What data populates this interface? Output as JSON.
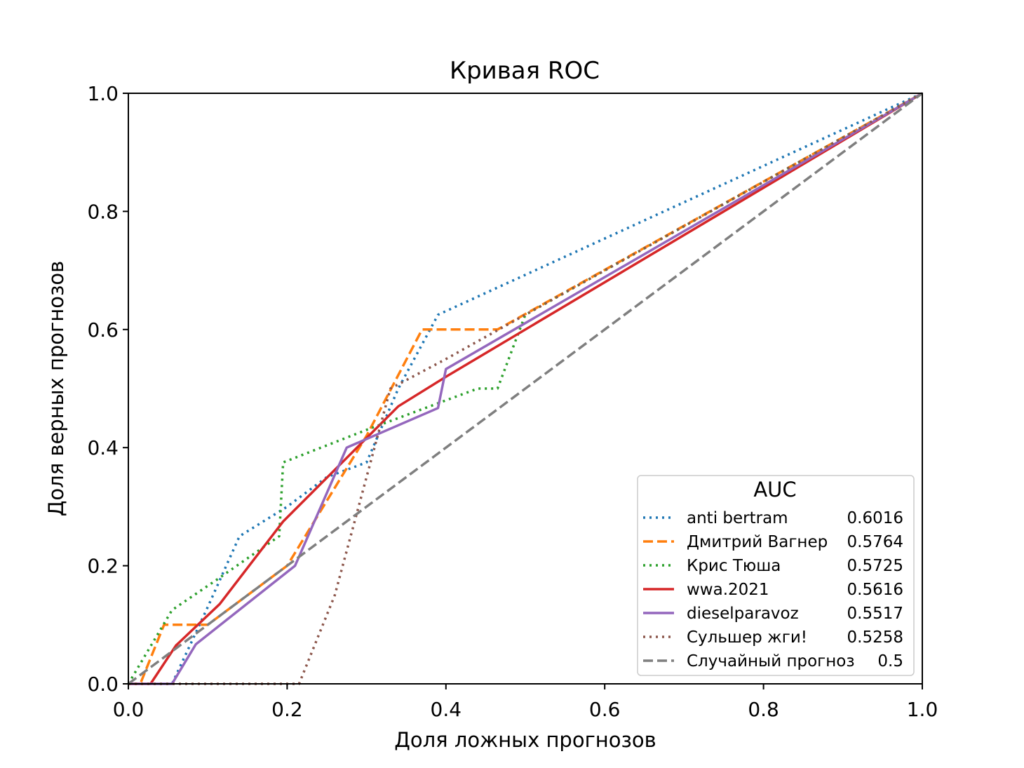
{
  "chart_data": {
    "type": "line",
    "title": "Кривая ROC",
    "xlabel": "Доля ложных прогнозов",
    "ylabel": "Доля верных прогнозов",
    "xlim": [
      0.0,
      1.0
    ],
    "ylim": [
      0.0,
      1.0
    ],
    "xticks": [
      "0.0",
      "0.2",
      "0.4",
      "0.6",
      "0.8",
      "1.0"
    ],
    "yticks": [
      "0.0",
      "0.2",
      "0.4",
      "0.6",
      "0.8",
      "1.0"
    ],
    "grid": false,
    "legend": {
      "title": "AUC",
      "placement": "lower-right"
    },
    "series": [
      {
        "name": "anti bertram",
        "auc": "0.6016",
        "color": "#1f77b4",
        "style": "dotted",
        "points": [
          [
            0.0,
            0.0
          ],
          [
            0.055,
            0.0
          ],
          [
            0.1,
            0.13
          ],
          [
            0.14,
            0.25
          ],
          [
            0.2,
            0.3
          ],
          [
            0.25,
            0.35
          ],
          [
            0.3,
            0.375
          ],
          [
            0.34,
            0.5
          ],
          [
            0.39,
            0.625
          ],
          [
            1.0,
            1.0
          ]
        ]
      },
      {
        "name": "Дмитрий Вагнер",
        "auc": "0.5764",
        "color": "#ff7f0e",
        "style": "dashed",
        "points": [
          [
            0.0,
            0.0
          ],
          [
            0.015,
            0.0
          ],
          [
            0.045,
            0.1
          ],
          [
            0.1,
            0.1
          ],
          [
            0.2,
            0.2
          ],
          [
            0.3,
            0.42
          ],
          [
            0.37,
            0.6
          ],
          [
            0.465,
            0.6
          ],
          [
            1.0,
            1.0
          ]
        ]
      },
      {
        "name": "Крис Тюша",
        "auc": "0.5725",
        "color": "#2ca02c",
        "style": "dotted",
        "points": [
          [
            0.0,
            0.0
          ],
          [
            0.055,
            0.125
          ],
          [
            0.11,
            0.175
          ],
          [
            0.19,
            0.25
          ],
          [
            0.195,
            0.375
          ],
          [
            0.3,
            0.43
          ],
          [
            0.4,
            0.48
          ],
          [
            0.44,
            0.5
          ],
          [
            0.465,
            0.5
          ],
          [
            0.5,
            0.625
          ],
          [
            1.0,
            1.0
          ]
        ]
      },
      {
        "name": "wwa.2021",
        "auc": "0.5616",
        "color": "#d62728",
        "style": "solid",
        "points": [
          [
            0.0,
            0.0
          ],
          [
            0.028,
            0.0
          ],
          [
            0.06,
            0.065
          ],
          [
            0.115,
            0.135
          ],
          [
            0.195,
            0.275
          ],
          [
            0.34,
            0.47
          ],
          [
            0.4,
            0.52
          ],
          [
            1.0,
            1.0
          ]
        ]
      },
      {
        "name": "dieselparavoz",
        "auc": "0.5517",
        "color": "#9467bd",
        "style": "solid",
        "points": [
          [
            0.0,
            0.0
          ],
          [
            0.055,
            0.0
          ],
          [
            0.085,
            0.067
          ],
          [
            0.21,
            0.2
          ],
          [
            0.275,
            0.4
          ],
          [
            0.39,
            0.467
          ],
          [
            0.4,
            0.533
          ],
          [
            1.0,
            1.0
          ]
        ]
      },
      {
        "name": "Сульшер жги!",
        "auc": "0.5258",
        "color": "#8c564b",
        "style": "dotted",
        "points": [
          [
            0.0,
            0.0
          ],
          [
            0.215,
            0.0
          ],
          [
            0.26,
            0.15
          ],
          [
            0.33,
            0.5
          ],
          [
            0.4,
            0.55
          ],
          [
            1.0,
            1.0
          ]
        ]
      },
      {
        "name": "Случайный прогноз",
        "auc": "0.5",
        "color": "#7f7f7f",
        "style": "dashed",
        "points": [
          [
            0.0,
            0.0
          ],
          [
            1.0,
            1.0
          ]
        ]
      }
    ]
  }
}
